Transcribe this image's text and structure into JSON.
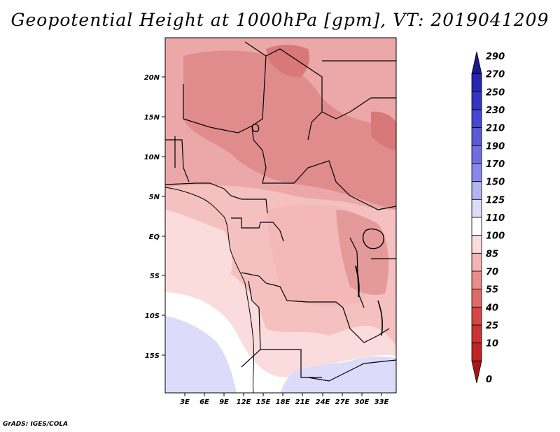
{
  "title": "Geopotential Height at 1000hPa [gpm], VT: 2019041209",
  "credit": "GrADS: IGES/COLA",
  "map": {
    "lat_labels": [
      "20N",
      "15N",
      "10N",
      "5N",
      "EQ",
      "5S",
      "10S",
      "15S"
    ],
    "lon_labels": [
      "3E",
      "6E",
      "9E",
      "12E",
      "15E",
      "18E",
      "21E",
      "24E",
      "27E",
      "30E",
      "33E"
    ]
  },
  "colorbar": {
    "labels": [
      "290",
      "270",
      "250",
      "230",
      "210",
      "190",
      "170",
      "150",
      "125",
      "110",
      "100",
      "85",
      "70",
      "55",
      "40",
      "25",
      "10",
      "0"
    ],
    "colors": [
      "#1a1a8c",
      "#2626b0",
      "#3333c4",
      "#4646d0",
      "#5a5ad8",
      "#6e6ee2",
      "#8888ec",
      "#b4b4f2",
      "#dcdcfa",
      "#ffffff",
      "#fadcdc",
      "#f4b4b4",
      "#ea8c8c",
      "#e06a6a",
      "#d64646",
      "#cc3232",
      "#c02424",
      "#a81616"
    ]
  },
  "field_colors": {
    "blue_low": "#dcdcfa",
    "white": "#ffffff",
    "pale": "#fadcdc",
    "light": "#f4c0c0",
    "mid": "#eca8a8",
    "dark": "#e08888",
    "darker": "#d87474"
  }
}
